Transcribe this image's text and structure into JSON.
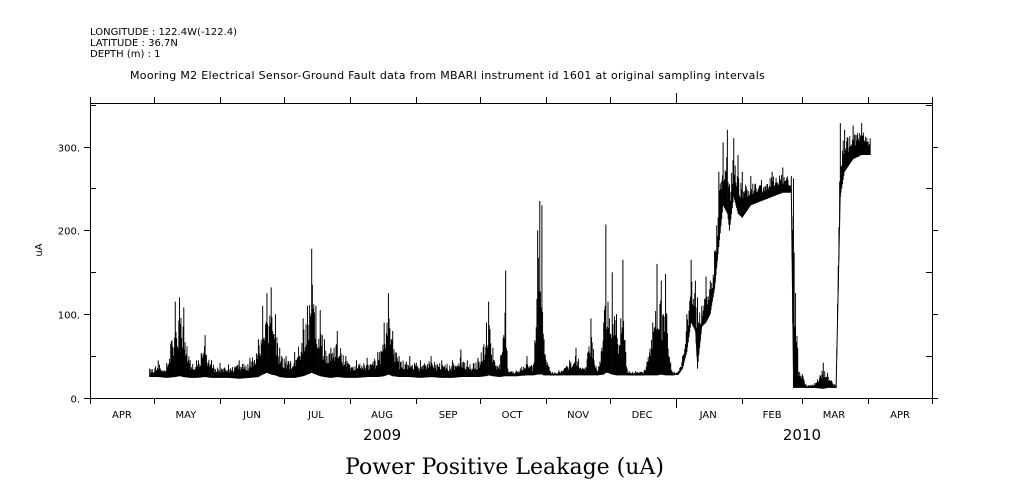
{
  "header": {
    "longitude": "LONGITUDE : 122.4W(-122.4)",
    "latitude": "LATITUDE : 36.7N",
    "depth": "DEPTH (m) : 1"
  },
  "chart_data": {
    "type": "line",
    "title": "Mooring M2 Electrical Sensor-Ground Fault data from MBARI instrument id 1601 at original sampling intervals",
    "xlabel": "Power Positive Leakage (uA)",
    "ylabel": "uA",
    "x_units": "days since 2009-04-01",
    "xlim": [
      0,
      395
    ],
    "ylim": [
      0,
      352
    ],
    "yticks": [
      0,
      100,
      200,
      300
    ],
    "ytick_labels": [
      "0.",
      "100.",
      "200.",
      "300."
    ],
    "yminor_ticks": [
      50,
      150,
      250,
      350
    ],
    "month_ticks": [
      0,
      30,
      61,
      91,
      122,
      153,
      183,
      214,
      244,
      275,
      306,
      334,
      365,
      395
    ],
    "month_labels": [
      {
        "label": "APR",
        "day": 15
      },
      {
        "label": "MAY",
        "day": 45
      },
      {
        "label": "JUN",
        "day": 76
      },
      {
        "label": "JUL",
        "day": 106
      },
      {
        "label": "AUG",
        "day": 137
      },
      {
        "label": "SEP",
        "day": 168
      },
      {
        "label": "OCT",
        "day": 198
      },
      {
        "label": "NOV",
        "day": 229
      },
      {
        "label": "DEC",
        "day": 259
      },
      {
        "label": "JAN",
        "day": 290
      },
      {
        "label": "FEB",
        "day": 320
      },
      {
        "label": "MAR",
        "day": 349
      },
      {
        "label": "APR",
        "day": 380
      }
    ],
    "year_labels": [
      {
        "label": "2009",
        "day": 137
      },
      {
        "label": "2010",
        "day": 334
      }
    ],
    "year_boundary_day": 275,
    "series": [
      {
        "name": "Power Positive Leakage",
        "envelope_day_low_high": [
          [
            28,
            25,
            35
          ],
          [
            32,
            25,
            45
          ],
          [
            36,
            24,
            42
          ],
          [
            40,
            25,
            115
          ],
          [
            42,
            26,
            120
          ],
          [
            44,
            25,
            108
          ],
          [
            47,
            24,
            45
          ],
          [
            50,
            24,
            45
          ],
          [
            54,
            25,
            75
          ],
          [
            57,
            24,
            45
          ],
          [
            61,
            24,
            42
          ],
          [
            65,
            24,
            40
          ],
          [
            70,
            23,
            45
          ],
          [
            75,
            24,
            48
          ],
          [
            79,
            25,
            70
          ],
          [
            81,
            28,
            110
          ],
          [
            83,
            30,
            125
          ],
          [
            85,
            28,
            132
          ],
          [
            87,
            27,
            100
          ],
          [
            89,
            25,
            60
          ],
          [
            92,
            24,
            50
          ],
          [
            96,
            24,
            55
          ],
          [
            100,
            26,
            95
          ],
          [
            102,
            28,
            110
          ],
          [
            104,
            30,
            178
          ],
          [
            106,
            28,
            110
          ],
          [
            108,
            26,
            105
          ],
          [
            110,
            25,
            70
          ],
          [
            113,
            24,
            60
          ],
          [
            116,
            25,
            80
          ],
          [
            120,
            24,
            50
          ],
          [
            125,
            24,
            45
          ],
          [
            130,
            25,
            48
          ],
          [
            135,
            25,
            55
          ],
          [
            138,
            26,
            90
          ],
          [
            140,
            28,
            125
          ],
          [
            142,
            26,
            80
          ],
          [
            145,
            25,
            50
          ],
          [
            150,
            25,
            50
          ],
          [
            155,
            24,
            45
          ],
          [
            160,
            25,
            50
          ],
          [
            165,
            24,
            45
          ],
          [
            170,
            24,
            45
          ],
          [
            174,
            25,
            58
          ],
          [
            177,
            25,
            45
          ],
          [
            182,
            25,
            48
          ],
          [
            186,
            26,
            90
          ],
          [
            187,
            27,
            115
          ],
          [
            189,
            26,
            60
          ],
          [
            192,
            25,
            40
          ],
          [
            195,
            26,
            152
          ],
          [
            196,
            26,
            35
          ],
          [
            200,
            26,
            33
          ],
          [
            205,
            27,
            50
          ],
          [
            208,
            27,
            40
          ],
          [
            210,
            28,
            200
          ],
          [
            211,
            28,
            235
          ],
          [
            212,
            28,
            230
          ],
          [
            213,
            27,
            70
          ],
          [
            216,
            27,
            32
          ],
          [
            220,
            27,
            33
          ],
          [
            225,
            27,
            45
          ],
          [
            228,
            27,
            60
          ],
          [
            232,
            27,
            35
          ],
          [
            235,
            27,
            95
          ],
          [
            238,
            27,
            32
          ],
          [
            241,
            28,
            90
          ],
          [
            242,
            30,
            207
          ],
          [
            243,
            30,
            115
          ],
          [
            245,
            28,
            150
          ],
          [
            247,
            27,
            100
          ],
          [
            249,
            27,
            95
          ],
          [
            250,
            27,
            165
          ],
          [
            252,
            27,
            35
          ],
          [
            256,
            27,
            32
          ],
          [
            260,
            27,
            33
          ],
          [
            264,
            27,
            90
          ],
          [
            266,
            27,
            160
          ],
          [
            268,
            28,
            140
          ],
          [
            270,
            27,
            148
          ],
          [
            273,
            27,
            32
          ],
          [
            276,
            28,
            32
          ],
          [
            278,
            35,
            50
          ],
          [
            280,
            55,
            100
          ],
          [
            282,
            90,
            165
          ],
          [
            284,
            80,
            140
          ],
          [
            285,
            35,
            120
          ],
          [
            287,
            85,
            110
          ],
          [
            289,
            90,
            145
          ],
          [
            291,
            100,
            140
          ],
          [
            293,
            130,
            175
          ],
          [
            295,
            180,
            270
          ],
          [
            297,
            230,
            305
          ],
          [
            299,
            220,
            320
          ],
          [
            300,
            200,
            255
          ],
          [
            302,
            240,
            310
          ],
          [
            304,
            220,
            290
          ],
          [
            306,
            215,
            270
          ],
          [
            310,
            230,
            265
          ],
          [
            315,
            235,
            260
          ],
          [
            320,
            240,
            270
          ],
          [
            325,
            245,
            275
          ],
          [
            329,
            245,
            265
          ],
          [
            330,
            12,
            262
          ],
          [
            332,
            12,
            60
          ],
          [
            336,
            12,
            16
          ],
          [
            340,
            12,
            18
          ],
          [
            344,
            11,
            42
          ],
          [
            346,
            12,
            30
          ],
          [
            350,
            12,
            16
          ],
          [
            352,
            240,
            328
          ],
          [
            354,
            270,
            320
          ],
          [
            358,
            285,
            325
          ],
          [
            362,
            290,
            328
          ],
          [
            366,
            290,
            310
          ]
        ]
      }
    ],
    "colors": {
      "line": "#000000",
      "background": "#ffffff"
    }
  }
}
